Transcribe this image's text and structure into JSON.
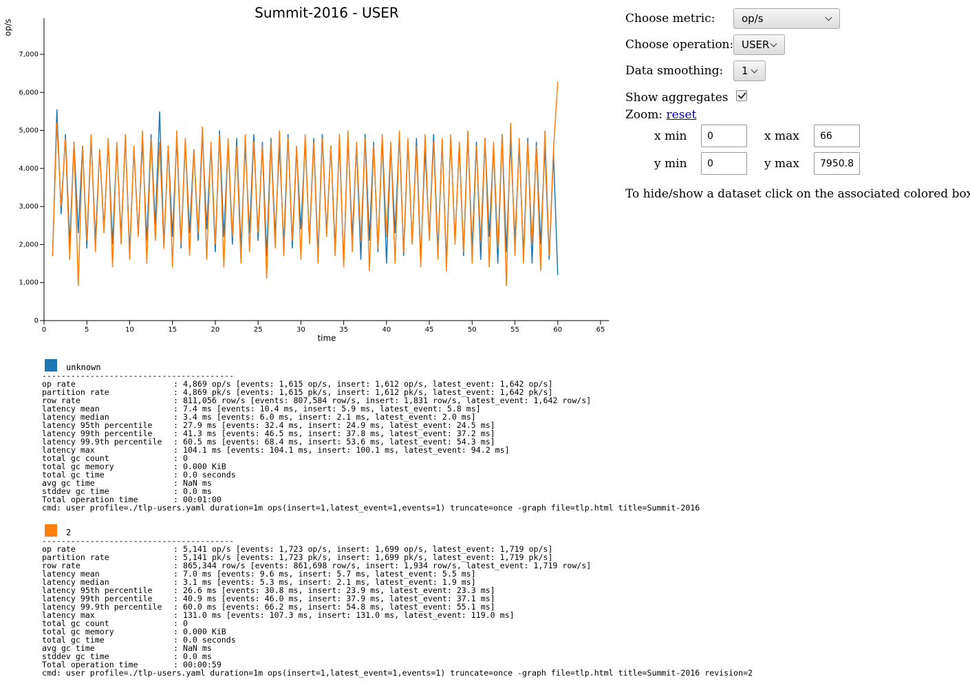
{
  "chart_data": {
    "type": "line",
    "title": "Summit-2016 - USER",
    "x_label": "time",
    "y_label": "op/s",
    "xlim": [
      0,
      66
    ],
    "ylim": [
      0,
      7950.8
    ],
    "xticks": [
      0,
      5,
      10,
      15,
      20,
      25,
      30,
      35,
      40,
      45,
      50,
      55,
      60,
      65
    ],
    "yticks": [
      0,
      {
        "value": 1000,
        "label": "1,000"
      },
      {
        "value": 2000,
        "label": "2,000"
      },
      {
        "value": 3000,
        "label": "3,000"
      },
      {
        "value": 4000,
        "label": "4,000"
      },
      {
        "value": 5000,
        "label": "5,000"
      },
      {
        "value": 6000,
        "label": "6,000"
      },
      {
        "value": 7000,
        "label": "7,000"
      }
    ],
    "x": [
      1,
      1.5,
      2,
      2.5,
      3,
      3.5,
      4,
      4.5,
      5,
      5.5,
      6,
      6.5,
      7,
      7.5,
      8,
      8.5,
      9,
      9.5,
      10,
      10.5,
      11,
      11.5,
      12,
      12.5,
      13,
      13.5,
      14,
      14.5,
      15,
      15.5,
      16,
      16.5,
      17,
      17.5,
      18,
      18.5,
      19,
      19.5,
      20,
      20.5,
      21,
      21.5,
      22,
      22.5,
      23,
      23.5,
      24,
      24.5,
      25,
      25.5,
      26,
      26.5,
      27,
      27.5,
      28,
      28.5,
      29,
      29.5,
      30,
      30.5,
      31,
      31.5,
      32,
      32.5,
      33,
      33.5,
      34,
      34.5,
      35,
      35.5,
      36,
      36.5,
      37,
      37.5,
      38,
      38.5,
      39,
      39.5,
      40,
      40.5,
      41,
      41.5,
      42,
      42.5,
      43,
      43.5,
      44,
      44.5,
      45,
      45.5,
      46,
      46.5,
      47,
      47.5,
      48,
      48.5,
      49,
      49.5,
      50,
      50.5,
      51,
      51.5,
      52,
      52.5,
      53,
      53.5,
      54,
      54.5,
      55,
      55.5,
      56,
      56.5,
      57,
      57.5,
      58,
      58.5,
      59,
      59.5,
      60
    ],
    "series": [
      {
        "name": "unknown",
        "color": "#1f77b4",
        "values": [
          1700,
          5550,
          2800,
          4900,
          2000,
          4700,
          2300,
          4600,
          1900,
          4800,
          2100,
          4500,
          2400,
          4700,
          2000,
          4600,
          2200,
          4800,
          1800,
          4500,
          2300,
          4700,
          2100,
          4900,
          2500,
          5500,
          2000,
          4600,
          2200,
          4800,
          1900,
          4700,
          2300,
          4500,
          2100,
          4900,
          2400,
          4600,
          1800,
          5000,
          2200,
          4700,
          2000,
          4800,
          1900,
          4600,
          2300,
          4900,
          2100,
          4700,
          1700,
          4800,
          2200,
          4600,
          2000,
          4900,
          1900,
          4500,
          2400,
          4700,
          2100,
          4800,
          1700,
          4900,
          2300,
          4600,
          1900,
          4700,
          1500,
          4800,
          2200,
          4600,
          1600,
          4900,
          2100,
          4700,
          1800,
          4800,
          1500,
          4600,
          2300,
          4900,
          1700,
          4700,
          2000,
          4800,
          1600,
          4500,
          2200,
          4900,
          1800,
          4700,
          1500,
          4800,
          2100,
          4600,
          1700,
          4900,
          1900,
          4700,
          1600,
          4800,
          2200,
          4600,
          1500,
          4900,
          1800,
          4700,
          2100,
          4600,
          1700,
          4800,
          1500,
          4700,
          2000,
          4600,
          1600,
          4400,
          1200
        ]
      },
      {
        "name": "2",
        "color": "#ff7f0e",
        "values": [
          1700,
          5200,
          3000,
          4800,
          1600,
          4700,
          900,
          4600,
          2100,
          4900,
          1800,
          4500,
          2300,
          4800,
          1400,
          4700,
          2000,
          4900,
          1600,
          4600,
          2200,
          5000,
          1500,
          4800,
          2100,
          4700,
          1900,
          4600,
          1400,
          5000,
          2000,
          4800,
          1700,
          4500,
          2300,
          5100,
          1600,
          4700,
          2000,
          4900,
          1400,
          4800,
          2200,
          4600,
          1500,
          4900,
          1800,
          4700,
          2300,
          4600,
          1100,
          4700,
          1900,
          5000,
          1700,
          4800,
          2100,
          4600,
          1600,
          4900,
          2000,
          4700,
          1500,
          4800,
          2200,
          4600,
          1700,
          4900,
          1400,
          5000,
          1800,
          4700,
          2100,
          4800,
          1300,
          4600,
          1900,
          4900,
          2200,
          4700,
          1500,
          5000,
          1800,
          4800,
          2000,
          4600,
          1400,
          4900,
          2100,
          4700,
          1600,
          4800,
          1300,
          4900,
          2000,
          4700,
          1800,
          5000,
          1500,
          4600,
          2100,
          4800,
          1400,
          4700,
          1900,
          4900,
          900,
          5200,
          1700,
          4800,
          1500,
          4700,
          2000,
          4600,
          1300,
          5000,
          1700,
          4500,
          6280
        ]
      }
    ]
  },
  "controls": {
    "metric_label": "Choose metric:",
    "metric": "op/s",
    "operation_label": "Choose operation:",
    "operation": "USER",
    "smoothing_label": "Data smoothing:",
    "smoothing": "1",
    "aggregates_label": "Show aggregates",
    "aggregates": true,
    "zoom_label": "Zoom:",
    "reset": "reset",
    "xmin_label": "x min",
    "xmax_label": "x max",
    "ymin_label": "y min",
    "ymax_label": "y max",
    "hint": "To hide/show a dataset click on the associated colored box"
  },
  "stats": [
    {
      "separator": "----------------------------------------",
      "rows": [
        [
          "op rate",
          ": 4,869 op/s [events: 1,615 op/s, insert: 1,612 op/s, latest_event: 1,642 op/s]"
        ],
        [
          "partition rate",
          ": 4,869 pk/s [events: 1,615 pk/s, insert: 1,612 pk/s, latest_event: 1,642 pk/s]"
        ],
        [
          "row rate",
          ": 811,056 row/s [events: 807,584 row/s, insert: 1,831 row/s, latest_event: 1,642 row/s]"
        ],
        [
          "latency mean",
          ": 7.4 ms [events: 10.4 ms, insert: 5.9 ms, latest_event: 5.8 ms]"
        ],
        [
          "latency median",
          ": 3.4 ms [events: 6.0 ms, insert: 2.1 ms, latest_event: 2.0 ms]"
        ],
        [
          "latency 95th percentile",
          ": 27.9 ms [events: 32.4 ms, insert: 24.9 ms, latest_event: 24.5 ms]"
        ],
        [
          "latency 99th percentile",
          ": 41.3 ms [events: 46.5 ms, insert: 37.8 ms, latest_event: 37.2 ms]"
        ],
        [
          "latency 99.9th percentile",
          ": 60.5 ms [events: 68.4 ms, insert: 53.6 ms, latest_event: 54.3 ms]"
        ],
        [
          "latency max",
          ": 104.1 ms [events: 104.1 ms, insert: 100.1 ms, latest_event: 94.2 ms]"
        ],
        [
          "total gc count",
          ": 0"
        ],
        [
          "total gc memory",
          ": 0.000 KiB"
        ],
        [
          "total gc time",
          ": 0.0 seconds"
        ],
        [
          "avg gc time",
          ": NaN ms"
        ],
        [
          "stddev gc time",
          ": 0.0 ms"
        ],
        [
          "Total operation time",
          ": 00:01:00"
        ]
      ],
      "cmd": "cmd: user profile=./tlp-users.yaml duration=1m ops(insert=1,latest_event=1,events=1) truncate=once -graph file=tlp.html title=Summit-2016"
    },
    {
      "separator": "----------------------------------------",
      "rows": [
        [
          "op rate",
          ": 5,141 op/s [events: 1,723 op/s, insert: 1,699 op/s, latest_event: 1,719 op/s]"
        ],
        [
          "partition rate",
          ": 5,141 pk/s [events: 1,723 pk/s, insert: 1,699 pk/s, latest_event: 1,719 pk/s]"
        ],
        [
          "row rate",
          ": 865,344 row/s [events: 861,698 row/s, insert: 1,934 row/s, latest_event: 1,719 row/s]"
        ],
        [
          "latency mean",
          ": 7.0 ms [events: 9.6 ms, insert: 5.7 ms, latest_event: 5.5 ms]"
        ],
        [
          "latency median",
          ": 3.1 ms [events: 5.3 ms, insert: 2.1 ms, latest_event: 1.9 ms]"
        ],
        [
          "latency 95th percentile",
          ": 26.6 ms [events: 30.8 ms, insert: 23.9 ms, latest_event: 23.3 ms]"
        ],
        [
          "latency 99th percentile",
          ": 40.9 ms [events: 46.0 ms, insert: 37.9 ms, latest_event: 37.1 ms]"
        ],
        [
          "latency 99.9th percentile",
          ": 60.0 ms [events: 66.2 ms, insert: 54.8 ms, latest_event: 55.1 ms]"
        ],
        [
          "latency max",
          ": 131.0 ms [events: 107.3 ms, insert: 131.0 ms, latest_event: 119.0 ms]"
        ],
        [
          "total gc count",
          ": 0"
        ],
        [
          "total gc memory",
          ": 0.000 KiB"
        ],
        [
          "total gc time",
          ": 0.0 seconds"
        ],
        [
          "avg gc time",
          ": NaN ms"
        ],
        [
          "stddev gc time",
          ": 0.0 ms"
        ],
        [
          "Total operation time",
          ": 00:00:59"
        ]
      ],
      "cmd": "cmd: user profile=./tlp-users.yaml duration=1m ops(insert=1,latest_event=1,events=1) truncate=once -graph file=tlp.html title=Summit-2016 revision=2"
    }
  ]
}
